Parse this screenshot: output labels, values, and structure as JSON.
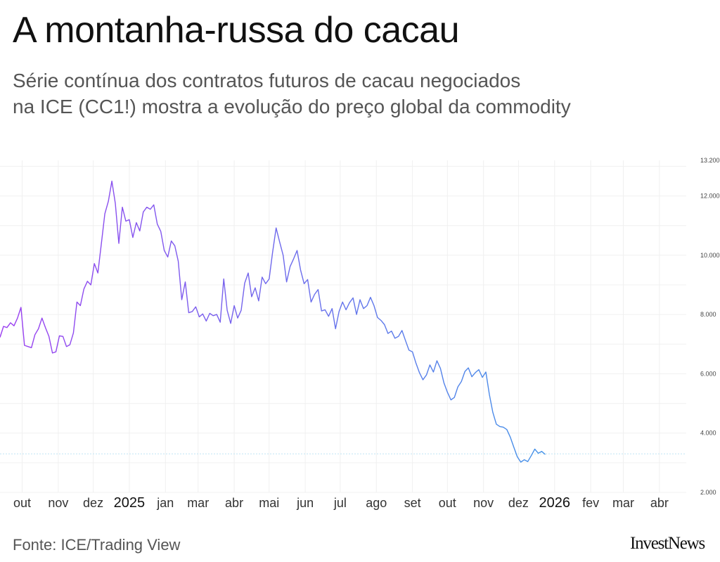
{
  "page": {
    "title": "A montanha-russa do cacau",
    "subtitle_lines": [
      "Série contínua dos contratos futuros de cacau negociados",
      "na ICE (CC1!) mostra a evolução do preço global da commodity"
    ],
    "source": "Fonte: ICE/Trading View",
    "brand": "InvestNews"
  },
  "chart_data": {
    "type": "line",
    "title": "A montanha-russa do cacau",
    "ylabel": "",
    "xlabel": "",
    "ylim": [
      2000,
      13200
    ],
    "y_ticks": [
      {
        "value": 2000,
        "label": "2.000"
      },
      {
        "value": 4000,
        "label": "4.000"
      },
      {
        "value": 6000,
        "label": "6.000"
      },
      {
        "value": 8000,
        "label": "8.000"
      },
      {
        "value": 10000,
        "label": "10.000"
      },
      {
        "value": 12000,
        "label": "12.000"
      },
      {
        "value": 13200,
        "label": "13.200"
      }
    ],
    "x_ticks": [
      {
        "date": "2024-10-01",
        "label": "out",
        "year": false
      },
      {
        "date": "2024-11-01",
        "label": "nov",
        "year": false
      },
      {
        "date": "2024-12-01",
        "label": "dez",
        "year": false
      },
      {
        "date": "2025-01-01",
        "label": "2025",
        "year": true
      },
      {
        "date": "2025-02-01",
        "label": "jan",
        "year": false
      },
      {
        "date": "2025-03-01",
        "label": "mar",
        "year": false
      },
      {
        "date": "2025-04-01",
        "label": "abr",
        "year": false
      },
      {
        "date": "2025-05-01",
        "label": "mai",
        "year": false
      },
      {
        "date": "2025-06-01",
        "label": "jun",
        "year": false
      },
      {
        "date": "2025-07-01",
        "label": "jul",
        "year": false
      },
      {
        "date": "2025-08-01",
        "label": "ago",
        "year": false
      },
      {
        "date": "2025-09-01",
        "label": "set",
        "year": false
      },
      {
        "date": "2025-10-01",
        "label": "out",
        "year": false
      },
      {
        "date": "2025-11-01",
        "label": "nov",
        "year": false
      },
      {
        "date": "2025-12-01",
        "label": "dez",
        "year": false
      },
      {
        "date": "2026-01-01",
        "label": "2026",
        "year": true
      },
      {
        "date": "2026-02-01",
        "label": "fev",
        "year": false
      },
      {
        "date": "2026-03-01",
        "label": "mar",
        "year": false
      },
      {
        "date": "2026-04-01",
        "label": "abr",
        "year": false
      }
    ],
    "reference_line": 3300,
    "grid": true,
    "colors": {
      "line_start": "#9b3ff0",
      "line_end": "#2ea8e6",
      "reference": "#bfe6f5",
      "grid": "#f0f0f0"
    },
    "series": [
      {
        "values": [
          {
            "x": "2024-09-12",
            "y": 7230
          },
          {
            "x": "2024-09-15",
            "y": 7600
          },
          {
            "x": "2024-09-18",
            "y": 7560
          },
          {
            "x": "2024-09-21",
            "y": 7720
          },
          {
            "x": "2024-09-24",
            "y": 7620
          },
          {
            "x": "2024-09-27",
            "y": 7880
          },
          {
            "x": "2024-09-30",
            "y": 8240
          },
          {
            "x": "2024-10-03",
            "y": 6960
          },
          {
            "x": "2024-10-06",
            "y": 6920
          },
          {
            "x": "2024-10-09",
            "y": 6880
          },
          {
            "x": "2024-10-12",
            "y": 7320
          },
          {
            "x": "2024-10-15",
            "y": 7520
          },
          {
            "x": "2024-10-18",
            "y": 7880
          },
          {
            "x": "2024-10-21",
            "y": 7560
          },
          {
            "x": "2024-10-24",
            "y": 7260
          },
          {
            "x": "2024-10-27",
            "y": 6700
          },
          {
            "x": "2024-10-30",
            "y": 6740
          },
          {
            "x": "2024-11-02",
            "y": 7280
          },
          {
            "x": "2024-11-05",
            "y": 7260
          },
          {
            "x": "2024-11-08",
            "y": 6920
          },
          {
            "x": "2024-11-11",
            "y": 6980
          },
          {
            "x": "2024-11-14",
            "y": 7380
          },
          {
            "x": "2024-11-17",
            "y": 8420
          },
          {
            "x": "2024-11-20",
            "y": 8300
          },
          {
            "x": "2024-11-23",
            "y": 8860
          },
          {
            "x": "2024-11-26",
            "y": 9120
          },
          {
            "x": "2024-11-29",
            "y": 9000
          },
          {
            "x": "2024-12-02",
            "y": 9720
          },
          {
            "x": "2024-12-05",
            "y": 9400
          },
          {
            "x": "2024-12-08",
            "y": 10400
          },
          {
            "x": "2024-12-11",
            "y": 11400
          },
          {
            "x": "2024-12-14",
            "y": 11820
          },
          {
            "x": "2024-12-17",
            "y": 12500
          },
          {
            "x": "2024-12-20",
            "y": 11750
          },
          {
            "x": "2024-12-23",
            "y": 10400
          },
          {
            "x": "2024-12-26",
            "y": 11620
          },
          {
            "x": "2024-12-29",
            "y": 11150
          },
          {
            "x": "2025-01-01",
            "y": 11200
          },
          {
            "x": "2025-01-04",
            "y": 10600
          },
          {
            "x": "2025-01-07",
            "y": 11100
          },
          {
            "x": "2025-01-10",
            "y": 10820
          },
          {
            "x": "2025-01-13",
            "y": 11460
          },
          {
            "x": "2025-01-16",
            "y": 11620
          },
          {
            "x": "2025-01-19",
            "y": 11550
          },
          {
            "x": "2025-01-22",
            "y": 11700
          },
          {
            "x": "2025-01-25",
            "y": 11050
          },
          {
            "x": "2025-01-28",
            "y": 10800
          },
          {
            "x": "2025-01-31",
            "y": 10160
          },
          {
            "x": "2025-02-03",
            "y": 9940
          },
          {
            "x": "2025-02-06",
            "y": 10480
          },
          {
            "x": "2025-02-09",
            "y": 10320
          },
          {
            "x": "2025-02-12",
            "y": 9800
          },
          {
            "x": "2025-02-15",
            "y": 8500
          },
          {
            "x": "2025-02-18",
            "y": 9100
          },
          {
            "x": "2025-02-21",
            "y": 8060
          },
          {
            "x": "2025-02-24",
            "y": 8100
          },
          {
            "x": "2025-02-27",
            "y": 8260
          },
          {
            "x": "2025-03-02",
            "y": 7920
          },
          {
            "x": "2025-03-05",
            "y": 8020
          },
          {
            "x": "2025-03-08",
            "y": 7780
          },
          {
            "x": "2025-03-11",
            "y": 8040
          },
          {
            "x": "2025-03-14",
            "y": 7960
          },
          {
            "x": "2025-03-17",
            "y": 8000
          },
          {
            "x": "2025-03-20",
            "y": 7740
          },
          {
            "x": "2025-03-23",
            "y": 9200
          },
          {
            "x": "2025-03-26",
            "y": 8140
          },
          {
            "x": "2025-03-29",
            "y": 7700
          },
          {
            "x": "2025-04-01",
            "y": 8300
          },
          {
            "x": "2025-04-04",
            "y": 7880
          },
          {
            "x": "2025-04-07",
            "y": 8140
          },
          {
            "x": "2025-04-10",
            "y": 9060
          },
          {
            "x": "2025-04-13",
            "y": 9400
          },
          {
            "x": "2025-04-16",
            "y": 8600
          },
          {
            "x": "2025-04-19",
            "y": 8900
          },
          {
            "x": "2025-04-22",
            "y": 8460
          },
          {
            "x": "2025-04-25",
            "y": 9260
          },
          {
            "x": "2025-04-28",
            "y": 9040
          },
          {
            "x": "2025-05-01",
            "y": 9200
          },
          {
            "x": "2025-05-04",
            "y": 10100
          },
          {
            "x": "2025-05-07",
            "y": 10920
          },
          {
            "x": "2025-05-10",
            "y": 10450
          },
          {
            "x": "2025-05-13",
            "y": 10000
          },
          {
            "x": "2025-05-16",
            "y": 9100
          },
          {
            "x": "2025-05-19",
            "y": 9620
          },
          {
            "x": "2025-05-22",
            "y": 9880
          },
          {
            "x": "2025-05-25",
            "y": 10160
          },
          {
            "x": "2025-05-28",
            "y": 9500
          },
          {
            "x": "2025-05-31",
            "y": 9040
          },
          {
            "x": "2025-06-03",
            "y": 9180
          },
          {
            "x": "2025-06-06",
            "y": 8420
          },
          {
            "x": "2025-06-09",
            "y": 8680
          },
          {
            "x": "2025-06-12",
            "y": 8840
          },
          {
            "x": "2025-06-15",
            "y": 8120
          },
          {
            "x": "2025-06-18",
            "y": 8160
          },
          {
            "x": "2025-06-21",
            "y": 7940
          },
          {
            "x": "2025-06-24",
            "y": 8200
          },
          {
            "x": "2025-06-27",
            "y": 7520
          },
          {
            "x": "2025-06-30",
            "y": 8100
          },
          {
            "x": "2025-07-03",
            "y": 8420
          },
          {
            "x": "2025-07-06",
            "y": 8160
          },
          {
            "x": "2025-07-09",
            "y": 8400
          },
          {
            "x": "2025-07-12",
            "y": 8560
          },
          {
            "x": "2025-07-15",
            "y": 8000
          },
          {
            "x": "2025-07-18",
            "y": 8500
          },
          {
            "x": "2025-07-21",
            "y": 8200
          },
          {
            "x": "2025-07-24",
            "y": 8300
          },
          {
            "x": "2025-07-27",
            "y": 8580
          },
          {
            "x": "2025-07-30",
            "y": 8300
          },
          {
            "x": "2025-08-02",
            "y": 7900
          },
          {
            "x": "2025-08-05",
            "y": 7800
          },
          {
            "x": "2025-08-08",
            "y": 7660
          },
          {
            "x": "2025-08-11",
            "y": 7360
          },
          {
            "x": "2025-08-14",
            "y": 7440
          },
          {
            "x": "2025-08-17",
            "y": 7200
          },
          {
            "x": "2025-08-20",
            "y": 7260
          },
          {
            "x": "2025-08-23",
            "y": 7460
          },
          {
            "x": "2025-08-26",
            "y": 7120
          },
          {
            "x": "2025-08-29",
            "y": 6800
          },
          {
            "x": "2025-09-01",
            "y": 6740
          },
          {
            "x": "2025-09-04",
            "y": 6360
          },
          {
            "x": "2025-09-07",
            "y": 6040
          },
          {
            "x": "2025-09-10",
            "y": 5800
          },
          {
            "x": "2025-09-13",
            "y": 5960
          },
          {
            "x": "2025-09-16",
            "y": 6300
          },
          {
            "x": "2025-09-19",
            "y": 6060
          },
          {
            "x": "2025-09-22",
            "y": 6440
          },
          {
            "x": "2025-09-25",
            "y": 6180
          },
          {
            "x": "2025-09-28",
            "y": 5700
          },
          {
            "x": "2025-10-01",
            "y": 5380
          },
          {
            "x": "2025-10-04",
            "y": 5120
          },
          {
            "x": "2025-10-07",
            "y": 5200
          },
          {
            "x": "2025-10-10",
            "y": 5560
          },
          {
            "x": "2025-10-13",
            "y": 5740
          },
          {
            "x": "2025-10-16",
            "y": 6080
          },
          {
            "x": "2025-10-19",
            "y": 6200
          },
          {
            "x": "2025-10-22",
            "y": 5900
          },
          {
            "x": "2025-10-25",
            "y": 6040
          },
          {
            "x": "2025-10-28",
            "y": 6140
          },
          {
            "x": "2025-10-31",
            "y": 5880
          },
          {
            "x": "2025-11-03",
            "y": 6060
          },
          {
            "x": "2025-11-06",
            "y": 5300
          },
          {
            "x": "2025-11-09",
            "y": 4700
          },
          {
            "x": "2025-11-12",
            "y": 4300
          },
          {
            "x": "2025-11-15",
            "y": 4220
          },
          {
            "x": "2025-11-18",
            "y": 4200
          },
          {
            "x": "2025-11-21",
            "y": 4120
          },
          {
            "x": "2025-11-24",
            "y": 3860
          },
          {
            "x": "2025-11-27",
            "y": 3520
          },
          {
            "x": "2025-11-30",
            "y": 3200
          },
          {
            "x": "2025-12-03",
            "y": 3020
          },
          {
            "x": "2025-12-06",
            "y": 3100
          },
          {
            "x": "2025-12-09",
            "y": 3040
          },
          {
            "x": "2025-12-12",
            "y": 3240
          },
          {
            "x": "2025-12-15",
            "y": 3460
          },
          {
            "x": "2025-12-18",
            "y": 3320
          },
          {
            "x": "2025-12-21",
            "y": 3380
          },
          {
            "x": "2025-12-24",
            "y": 3280
          }
        ]
      }
    ]
  }
}
